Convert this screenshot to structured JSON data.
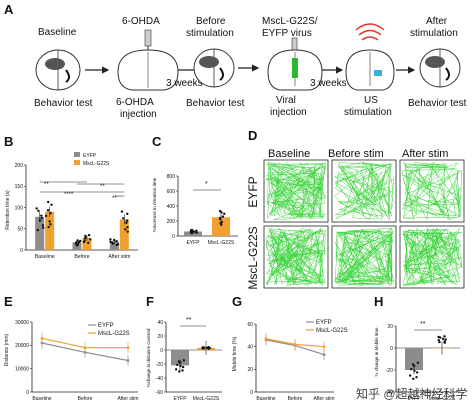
{
  "panel_letters": {
    "a": "A",
    "b": "B",
    "c": "C",
    "d": "D",
    "e": "E",
    "f": "F",
    "g": "G",
    "h": "H"
  },
  "timeline": {
    "step1_title": "Baseline",
    "step1_caption": "Behavior test",
    "step2_title": "6-OHDA",
    "step2_caption_l1": "6-OHDA",
    "step2_caption_l2": "injection",
    "gap1": "3 weeks",
    "step3_title_l1": "Before",
    "step3_title_l2": "stimulation",
    "step3_caption": "Behavior test",
    "step4_title_l1": "MscL-G22S/",
    "step4_title_l2": "EYFP virus",
    "step4_caption_l1": "Viral",
    "step4_caption_l2": "injection",
    "gap2": "3 weeks",
    "step5_caption_l1": "US",
    "step5_caption_l2": "stimulation",
    "step6_title_l1": "After",
    "step6_title_l2": "stimulation",
    "step6_caption": "Behavior test"
  },
  "colors": {
    "eyfp": "#8c8c8c",
    "mscl": "#f0a030",
    "track": "#32d232",
    "arrow": "#222222"
  },
  "panel_b": {
    "ylabel": "Retention time (s)",
    "legend": [
      "EYFP",
      "MscL-G22S"
    ],
    "groups": [
      "Baseline",
      "Before",
      "After stim"
    ],
    "yticks": [
      "0",
      "50",
      "100",
      "150",
      "200"
    ],
    "ylim": [
      0,
      200
    ],
    "eyfp": [
      78,
      18,
      20
    ],
    "mscl": [
      90,
      28,
      72
    ],
    "eyfp_err": [
      12,
      5,
      6
    ],
    "mscl_err": [
      12,
      6,
      12
    ],
    "sig": [
      "**",
      "****",
      "**",
      "**"
    ]
  },
  "panel_c": {
    "ylabel": "%Increase in retention time",
    "categories": [
      "EYFP",
      "MscL-G22S"
    ],
    "yticks": [
      "0",
      "200",
      "400",
      "600",
      "800"
    ],
    "ylim": [
      0,
      800
    ],
    "values": [
      60,
      250
    ],
    "err": [
      25,
      60
    ],
    "sig": "*"
  },
  "panel_d": {
    "col_titles": [
      "Baseline",
      "Before stim",
      "After stim"
    ],
    "row_titles": [
      "EYFP",
      "MscL-G22S"
    ]
  },
  "panel_e": {
    "ylabel": "Distance (mm)",
    "legend": [
      "EYFP",
      "MscL-G22S"
    ],
    "categories": [
      "Baseline",
      "Before",
      "After stim"
    ],
    "yticks": [
      "0",
      "10000",
      "20000",
      "30000"
    ],
    "ylim": [
      0,
      30000
    ],
    "eyfp": [
      21000,
      17000,
      13500
    ],
    "mscl": [
      23000,
      19000,
      19000
    ]
  },
  "panel_f": {
    "ylabel": "%change in distance covered",
    "categories": [
      "EYFP",
      "MscL-G22S"
    ],
    "yticks": [
      "-60",
      "-40",
      "-20",
      "0",
      "20",
      "40"
    ],
    "ylim": [
      -60,
      40
    ],
    "values": [
      -22,
      3
    ],
    "err": [
      8,
      10
    ],
    "sig": "**"
  },
  "panel_g": {
    "ylabel": "Mobile time (%)",
    "legend": [
      "EYFP",
      "MscL-G22S"
    ],
    "categories": [
      "Baseline",
      "Before",
      "After stim"
    ],
    "yticks": [
      "0",
      "20",
      "40",
      "60"
    ],
    "ylim": [
      0,
      60
    ],
    "eyfp": [
      46,
      41,
      33
    ],
    "mscl": [
      47,
      42,
      40
    ]
  },
  "panel_h": {
    "ylabel": "% change in Mobile time",
    "categories": [
      "EYFP",
      "MscL-G22S"
    ],
    "yticks": [
      "-40",
      "-20",
      "0",
      "20"
    ],
    "ylim": [
      -40,
      20
    ],
    "values": [
      -20,
      0
    ],
    "err": [
      4,
      6
    ],
    "sig": "**"
  },
  "watermark": "知乎 @超越神经科学"
}
